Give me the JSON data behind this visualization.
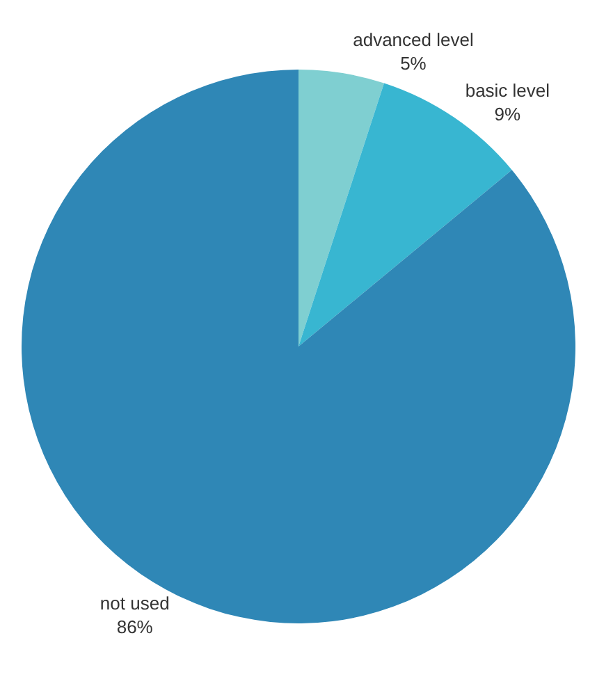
{
  "chart_data": {
    "type": "pie",
    "categories": [
      "advanced level",
      "basic level",
      "not used"
    ],
    "values": [
      5,
      9,
      86
    ],
    "value_labels": [
      "5%",
      "9%",
      "86%"
    ],
    "colors": [
      "#7fcfd1",
      "#38b6d1",
      "#2f87b6"
    ],
    "legend": false
  }
}
